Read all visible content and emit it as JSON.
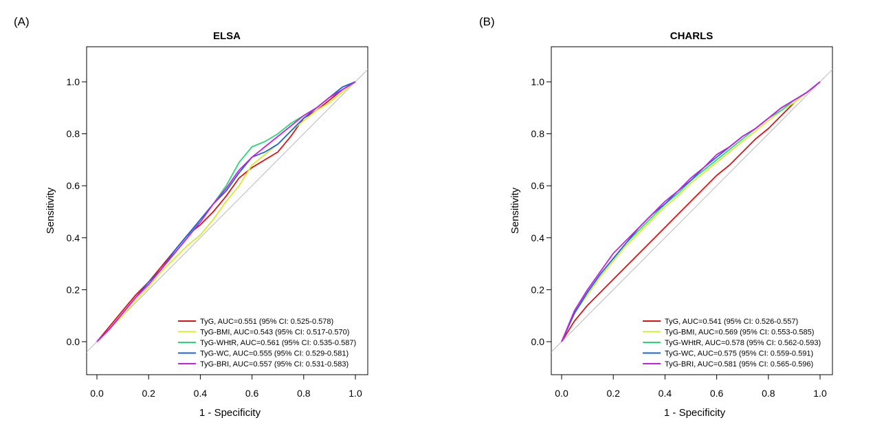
{
  "panels": [
    {
      "tag": "(A)",
      "title": "ELSA"
    },
    {
      "tag": "(B)",
      "title": "CHARLS"
    }
  ],
  "series_colors": {
    "TyG": "#e01010",
    "TyG-BMI": "#d4ec30",
    "TyG-WHtR": "#28d878",
    "TyG-WC": "#1e64d8",
    "TyG-BRI": "#c81ee6"
  },
  "chart_data": [
    {
      "type": "line",
      "title": "ELSA",
      "xlabel": "1 - Specificity",
      "ylabel": "Sensitivity",
      "xlim": [
        -0.04,
        1.04
      ],
      "ylim": [
        -0.13,
        1.13
      ],
      "xticks": [
        "0.0",
        "0.2",
        "0.4",
        "0.6",
        "0.8",
        "1.0"
      ],
      "yticks": [
        "0.0",
        "0.2",
        "0.4",
        "0.6",
        "0.8",
        "1.0"
      ],
      "reference_line": true,
      "legend_position": "bottom-right",
      "series": [
        {
          "name": "TyG",
          "legend": "TyG, AUC=0.551 (95% CI: 0.525-0.578)",
          "x": [
            0,
            0.05,
            0.1,
            0.15,
            0.2,
            0.25,
            0.3,
            0.35,
            0.4,
            0.45,
            0.5,
            0.55,
            0.6,
            0.65,
            0.7,
            0.75,
            0.8,
            0.85,
            0.9,
            0.95,
            1.0
          ],
          "y": [
            0,
            0.06,
            0.12,
            0.18,
            0.23,
            0.29,
            0.35,
            0.41,
            0.45,
            0.5,
            0.56,
            0.63,
            0.67,
            0.7,
            0.73,
            0.79,
            0.86,
            0.89,
            0.93,
            0.97,
            1.0
          ]
        },
        {
          "name": "TyG-BMI",
          "legend": "TyG-BMI, AUC=0.543 (95% CI: 0.517-0.570)",
          "x": [
            0,
            0.05,
            0.1,
            0.15,
            0.2,
            0.25,
            0.3,
            0.35,
            0.4,
            0.45,
            0.5,
            0.55,
            0.6,
            0.65,
            0.7,
            0.75,
            0.8,
            0.85,
            0.9,
            0.95,
            1.0
          ],
          "y": [
            0,
            0.05,
            0.1,
            0.16,
            0.21,
            0.27,
            0.32,
            0.37,
            0.41,
            0.47,
            0.54,
            0.6,
            0.68,
            0.72,
            0.76,
            0.81,
            0.85,
            0.89,
            0.92,
            0.96,
            1.0
          ]
        },
        {
          "name": "TyG-WHtR",
          "legend": "TyG-WHtR, AUC=0.561 (95% CI: 0.535-0.587)",
          "x": [
            0,
            0.05,
            0.1,
            0.15,
            0.2,
            0.25,
            0.3,
            0.35,
            0.4,
            0.45,
            0.5,
            0.55,
            0.6,
            0.65,
            0.7,
            0.75,
            0.8,
            0.85,
            0.9,
            0.95,
            1.0
          ],
          "y": [
            0,
            0.05,
            0.11,
            0.17,
            0.22,
            0.28,
            0.34,
            0.4,
            0.47,
            0.53,
            0.6,
            0.69,
            0.75,
            0.77,
            0.8,
            0.84,
            0.87,
            0.9,
            0.94,
            0.98,
            1.0
          ]
        },
        {
          "name": "TyG-WC",
          "legend": "TyG-WC, AUC=0.555 (95% CI: 0.529-0.581)",
          "x": [
            0,
            0.05,
            0.1,
            0.15,
            0.2,
            0.25,
            0.3,
            0.35,
            0.4,
            0.45,
            0.5,
            0.55,
            0.6,
            0.65,
            0.7,
            0.75,
            0.8,
            0.85,
            0.9,
            0.95,
            1.0
          ],
          "y": [
            0,
            0.05,
            0.11,
            0.17,
            0.23,
            0.28,
            0.35,
            0.41,
            0.47,
            0.53,
            0.58,
            0.65,
            0.71,
            0.73,
            0.76,
            0.81,
            0.86,
            0.9,
            0.94,
            0.98,
            1.0
          ]
        },
        {
          "name": "TyG-BRI",
          "legend": "TyG-BRI, AUC=0.557 (95% CI: 0.531-0.583)",
          "x": [
            0,
            0.05,
            0.1,
            0.15,
            0.2,
            0.25,
            0.3,
            0.35,
            0.4,
            0.45,
            0.5,
            0.55,
            0.6,
            0.65,
            0.7,
            0.75,
            0.8,
            0.85,
            0.9,
            0.95,
            1.0
          ],
          "y": [
            0,
            0.05,
            0.11,
            0.17,
            0.22,
            0.28,
            0.34,
            0.4,
            0.46,
            0.53,
            0.59,
            0.66,
            0.71,
            0.75,
            0.79,
            0.83,
            0.87,
            0.9,
            0.94,
            0.97,
            1.0
          ]
        }
      ]
    },
    {
      "type": "line",
      "title": "CHARLS",
      "xlabel": "1 - Specificity",
      "ylabel": "Sensitivity",
      "xlim": [
        -0.04,
        1.04
      ],
      "ylim": [
        -0.13,
        1.13
      ],
      "xticks": [
        "0.0",
        "0.2",
        "0.4",
        "0.6",
        "0.8",
        "1.0"
      ],
      "yticks": [
        "0.0",
        "0.2",
        "0.4",
        "0.6",
        "0.8",
        "1.0"
      ],
      "reference_line": true,
      "legend_position": "bottom-right",
      "series": [
        {
          "name": "TyG",
          "legend": "TyG, AUC=0.541 (95% CI: 0.526-0.557)",
          "x": [
            0,
            0.05,
            0.1,
            0.15,
            0.2,
            0.25,
            0.3,
            0.35,
            0.4,
            0.45,
            0.5,
            0.55,
            0.6,
            0.65,
            0.7,
            0.75,
            0.8,
            0.85,
            0.9,
            0.95,
            1.0
          ],
          "y": [
            0,
            0.08,
            0.14,
            0.19,
            0.24,
            0.29,
            0.34,
            0.39,
            0.44,
            0.49,
            0.54,
            0.59,
            0.64,
            0.68,
            0.73,
            0.78,
            0.82,
            0.87,
            0.92,
            0.96,
            1.0
          ]
        },
        {
          "name": "TyG-BMI",
          "legend": "TyG-BMI, AUC=0.569 (95% CI: 0.553-0.585)",
          "x": [
            0,
            0.05,
            0.1,
            0.15,
            0.2,
            0.25,
            0.3,
            0.35,
            0.4,
            0.45,
            0.5,
            0.55,
            0.6,
            0.65,
            0.7,
            0.75,
            0.8,
            0.85,
            0.9,
            0.95,
            1.0
          ],
          "y": [
            0,
            0.11,
            0.18,
            0.25,
            0.31,
            0.37,
            0.42,
            0.47,
            0.52,
            0.56,
            0.61,
            0.65,
            0.69,
            0.73,
            0.77,
            0.81,
            0.85,
            0.89,
            0.92,
            0.96,
            1.0
          ]
        },
        {
          "name": "TyG-WHtR",
          "legend": "TyG-WHtR, AUC=0.578 (95% CI: 0.562-0.593)",
          "x": [
            0,
            0.05,
            0.1,
            0.15,
            0.2,
            0.25,
            0.3,
            0.35,
            0.4,
            0.45,
            0.5,
            0.55,
            0.6,
            0.65,
            0.7,
            0.75,
            0.8,
            0.85,
            0.9,
            0.95,
            1.0
          ],
          "y": [
            0,
            0.11,
            0.19,
            0.26,
            0.32,
            0.38,
            0.43,
            0.48,
            0.53,
            0.57,
            0.62,
            0.66,
            0.7,
            0.74,
            0.78,
            0.82,
            0.86,
            0.89,
            0.93,
            0.96,
            1.0
          ]
        },
        {
          "name": "TyG-WC",
          "legend": "TyG-WC, AUC=0.575 (95% CI: 0.559-0.591)",
          "x": [
            0,
            0.05,
            0.1,
            0.15,
            0.2,
            0.25,
            0.3,
            0.35,
            0.4,
            0.45,
            0.5,
            0.55,
            0.6,
            0.65,
            0.7,
            0.75,
            0.8,
            0.85,
            0.9,
            0.95,
            1.0
          ],
          "y": [
            0,
            0.11,
            0.19,
            0.26,
            0.32,
            0.38,
            0.44,
            0.49,
            0.53,
            0.58,
            0.62,
            0.67,
            0.71,
            0.75,
            0.79,
            0.82,
            0.86,
            0.9,
            0.93,
            0.96,
            1.0
          ]
        },
        {
          "name": "TyG-BRI",
          "legend": "TyG-BRI, AUC=0.581 (95% CI: 0.565-0.596)",
          "x": [
            0,
            0.05,
            0.1,
            0.15,
            0.2,
            0.25,
            0.3,
            0.35,
            0.4,
            0.45,
            0.5,
            0.55,
            0.6,
            0.65,
            0.7,
            0.75,
            0.8,
            0.85,
            0.9,
            0.95,
            1.0
          ],
          "y": [
            0,
            0.12,
            0.2,
            0.27,
            0.34,
            0.39,
            0.44,
            0.49,
            0.54,
            0.58,
            0.63,
            0.67,
            0.72,
            0.75,
            0.79,
            0.82,
            0.86,
            0.9,
            0.93,
            0.96,
            1.0
          ]
        }
      ]
    }
  ]
}
